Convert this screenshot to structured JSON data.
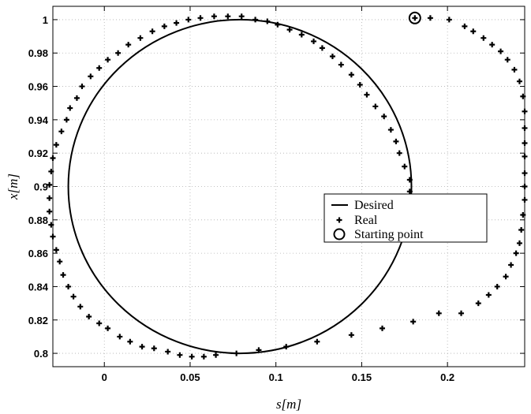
{
  "chart_data": {
    "type": "scatter",
    "xlabel": "s[m]",
    "ylabel": "x[m]",
    "xlim": [
      -0.03,
      0.245
    ],
    "ylim": [
      0.792,
      1.008
    ],
    "grid": true,
    "legend_position": "right",
    "x_ticks": [
      0,
      0.05,
      0.1,
      0.15,
      0.2
    ],
    "x_tick_labels": [
      "0",
      "0.05",
      "0.1",
      "0.15",
      "0.2"
    ],
    "y_ticks": [
      0.8,
      0.82,
      0.84,
      0.86,
      0.88,
      0.9,
      0.92,
      0.94,
      0.96,
      0.98,
      1
    ],
    "y_tick_labels": [
      "0.8",
      "0.82",
      "0.84",
      "0.86",
      "0.88",
      "0.9",
      "0.92",
      "0.94",
      "0.96",
      "0.98",
      "1"
    ],
    "series": [
      {
        "name": "Desired",
        "style": "line",
        "circle": {
          "center": [
            0.079,
            0.9
          ],
          "radius_s": 0.1,
          "radius_x": 0.1
        }
      },
      {
        "name": "Real",
        "style": "plus",
        "points": [
          [
            0.181,
            1.001
          ],
          [
            0.19,
            1.001
          ],
          [
            0.201,
            1.0
          ],
          [
            0.21,
            0.996
          ],
          [
            0.215,
            0.993
          ],
          [
            0.221,
            0.989
          ],
          [
            0.226,
            0.985
          ],
          [
            0.231,
            0.981
          ],
          [
            0.235,
            0.976
          ],
          [
            0.239,
            0.97
          ],
          [
            0.242,
            0.963
          ],
          [
            0.244,
            0.954
          ],
          [
            0.245,
            0.945
          ],
          [
            0.245,
            0.935
          ],
          [
            0.245,
            0.926
          ],
          [
            0.245,
            0.918
          ],
          [
            0.245,
            0.908
          ],
          [
            0.245,
            0.9
          ],
          [
            0.245,
            0.892
          ],
          [
            0.244,
            0.883
          ],
          [
            0.243,
            0.874
          ],
          [
            0.242,
            0.866
          ],
          [
            0.24,
            0.86
          ],
          [
            0.237,
            0.853
          ],
          [
            0.234,
            0.846
          ],
          [
            0.229,
            0.84
          ],
          [
            0.224,
            0.835
          ],
          [
            0.218,
            0.83
          ],
          [
            0.208,
            0.824
          ],
          [
            0.195,
            0.824
          ],
          [
            0.18,
            0.819
          ],
          [
            0.162,
            0.815
          ],
          [
            0.144,
            0.811
          ],
          [
            0.124,
            0.807
          ],
          [
            0.106,
            0.804
          ],
          [
            0.09,
            0.802
          ],
          [
            0.077,
            0.8
          ],
          [
            0.065,
            0.799
          ],
          [
            0.058,
            0.798
          ],
          [
            0.051,
            0.798
          ],
          [
            0.044,
            0.799
          ],
          [
            0.037,
            0.801
          ],
          [
            0.029,
            0.803
          ],
          [
            0.022,
            0.804
          ],
          [
            0.015,
            0.807
          ],
          [
            0.009,
            0.81
          ],
          [
            0.002,
            0.815
          ],
          [
            -0.003,
            0.818
          ],
          [
            -0.009,
            0.822
          ],
          [
            -0.014,
            0.828
          ],
          [
            -0.018,
            0.834
          ],
          [
            -0.021,
            0.84
          ],
          [
            -0.024,
            0.847
          ],
          [
            -0.026,
            0.855
          ],
          [
            -0.028,
            0.862
          ],
          [
            -0.03,
            0.87
          ],
          [
            -0.031,
            0.877
          ],
          [
            -0.032,
            0.885
          ],
          [
            -0.032,
            0.893
          ],
          [
            -0.032,
            0.901
          ],
          [
            -0.031,
            0.909
          ],
          [
            -0.03,
            0.917
          ],
          [
            -0.028,
            0.925
          ],
          [
            -0.025,
            0.933
          ],
          [
            -0.022,
            0.94
          ],
          [
            -0.02,
            0.947
          ],
          [
            -0.016,
            0.953
          ],
          [
            -0.013,
            0.96
          ],
          [
            -0.008,
            0.966
          ],
          [
            -0.003,
            0.971
          ],
          [
            0.002,
            0.976
          ],
          [
            0.008,
            0.98
          ],
          [
            0.014,
            0.985
          ],
          [
            0.021,
            0.989
          ],
          [
            0.028,
            0.993
          ],
          [
            0.035,
            0.996
          ],
          [
            0.042,
            0.998
          ],
          [
            0.049,
            1.0
          ],
          [
            0.056,
            1.001
          ],
          [
            0.064,
            1.002
          ],
          [
            0.072,
            1.002
          ],
          [
            0.08,
            1.002
          ],
          [
            0.088,
            1.0
          ],
          [
            0.095,
            0.999
          ],
          [
            0.101,
            0.997
          ],
          [
            0.108,
            0.994
          ],
          [
            0.115,
            0.991
          ],
          [
            0.122,
            0.987
          ],
          [
            0.127,
            0.983
          ],
          [
            0.133,
            0.978
          ],
          [
            0.138,
            0.973
          ],
          [
            0.144,
            0.967
          ],
          [
            0.149,
            0.961
          ],
          [
            0.153,
            0.955
          ],
          [
            0.158,
            0.948
          ],
          [
            0.163,
            0.942
          ],
          [
            0.167,
            0.934
          ],
          [
            0.17,
            0.927
          ],
          [
            0.172,
            0.92
          ],
          [
            0.175,
            0.912
          ],
          [
            0.178,
            0.904
          ],
          [
            0.178,
            0.897
          ]
        ]
      },
      {
        "name": "Starting point",
        "style": "circle",
        "points": [
          [
            0.181,
            1.001
          ]
        ]
      }
    ]
  }
}
